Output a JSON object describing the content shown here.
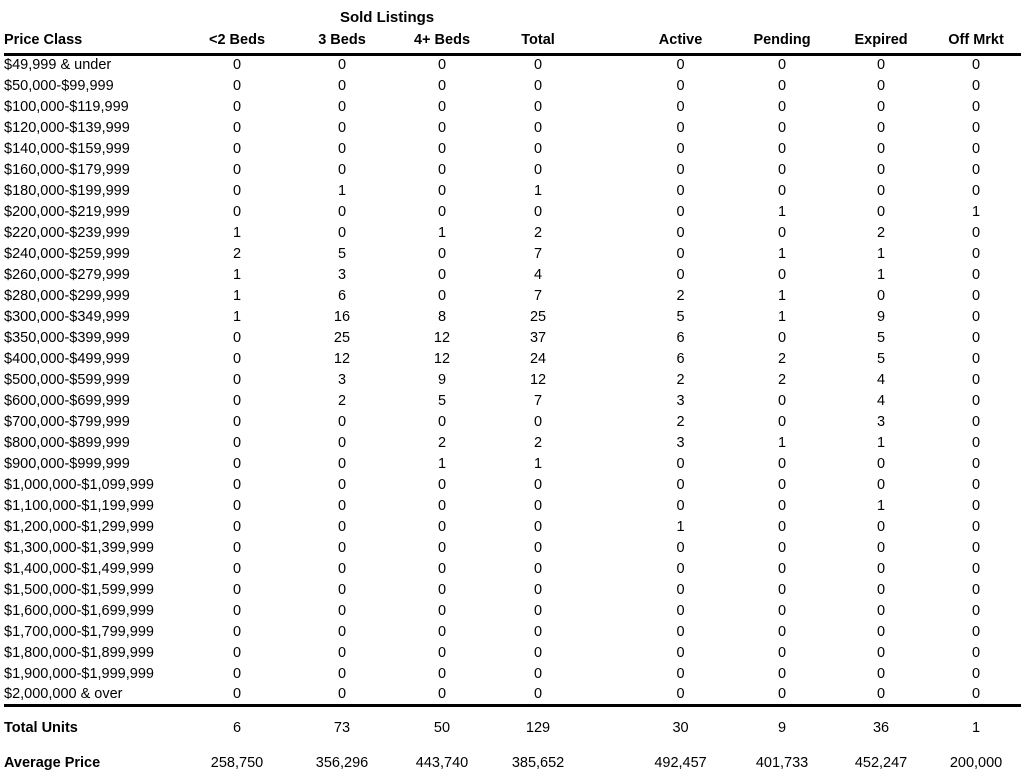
{
  "table": {
    "group_header": "Sold Listings",
    "columns": [
      "Price Class",
      "<2 Beds",
      "3 Beds",
      "4+ Beds",
      "Total",
      "Active",
      "Pending",
      "Expired",
      "Off Mrkt"
    ],
    "rows": [
      {
        "price_class": "$49,999 & under",
        "values": [
          0,
          0,
          0,
          0,
          0,
          0,
          0,
          0
        ]
      },
      {
        "price_class": "$50,000-$99,999",
        "values": [
          0,
          0,
          0,
          0,
          0,
          0,
          0,
          0
        ]
      },
      {
        "price_class": "$100,000-$119,999",
        "values": [
          0,
          0,
          0,
          0,
          0,
          0,
          0,
          0
        ]
      },
      {
        "price_class": "$120,000-$139,999",
        "values": [
          0,
          0,
          0,
          0,
          0,
          0,
          0,
          0
        ]
      },
      {
        "price_class": "$140,000-$159,999",
        "values": [
          0,
          0,
          0,
          0,
          0,
          0,
          0,
          0
        ]
      },
      {
        "price_class": "$160,000-$179,999",
        "values": [
          0,
          0,
          0,
          0,
          0,
          0,
          0,
          0
        ]
      },
      {
        "price_class": "$180,000-$199,999",
        "values": [
          0,
          1,
          0,
          1,
          0,
          0,
          0,
          0
        ]
      },
      {
        "price_class": "$200,000-$219,999",
        "values": [
          0,
          0,
          0,
          0,
          0,
          1,
          0,
          1
        ]
      },
      {
        "price_class": "$220,000-$239,999",
        "values": [
          1,
          0,
          1,
          2,
          0,
          0,
          2,
          0
        ]
      },
      {
        "price_class": "$240,000-$259,999",
        "values": [
          2,
          5,
          0,
          7,
          0,
          1,
          1,
          0
        ]
      },
      {
        "price_class": "$260,000-$279,999",
        "values": [
          1,
          3,
          0,
          4,
          0,
          0,
          1,
          0
        ]
      },
      {
        "price_class": "$280,000-$299,999",
        "values": [
          1,
          6,
          0,
          7,
          2,
          1,
          0,
          0
        ]
      },
      {
        "price_class": "$300,000-$349,999",
        "values": [
          1,
          16,
          8,
          25,
          5,
          1,
          9,
          0
        ]
      },
      {
        "price_class": "$350,000-$399,999",
        "values": [
          0,
          25,
          12,
          37,
          6,
          0,
          5,
          0
        ]
      },
      {
        "price_class": "$400,000-$499,999",
        "values": [
          0,
          12,
          12,
          24,
          6,
          2,
          5,
          0
        ]
      },
      {
        "price_class": "$500,000-$599,999",
        "values": [
          0,
          3,
          9,
          12,
          2,
          2,
          4,
          0
        ]
      },
      {
        "price_class": "$600,000-$699,999",
        "values": [
          0,
          2,
          5,
          7,
          3,
          0,
          4,
          0
        ]
      },
      {
        "price_class": "$700,000-$799,999",
        "values": [
          0,
          0,
          0,
          0,
          2,
          0,
          3,
          0
        ]
      },
      {
        "price_class": "$800,000-$899,999",
        "values": [
          0,
          0,
          2,
          2,
          3,
          1,
          1,
          0
        ]
      },
      {
        "price_class": "$900,000-$999,999",
        "values": [
          0,
          0,
          1,
          1,
          0,
          0,
          0,
          0
        ]
      },
      {
        "price_class": "$1,000,000-$1,099,999",
        "values": [
          0,
          0,
          0,
          0,
          0,
          0,
          0,
          0
        ]
      },
      {
        "price_class": "$1,100,000-$1,199,999",
        "values": [
          0,
          0,
          0,
          0,
          0,
          0,
          1,
          0
        ]
      },
      {
        "price_class": "$1,200,000-$1,299,999",
        "values": [
          0,
          0,
          0,
          0,
          1,
          0,
          0,
          0
        ]
      },
      {
        "price_class": "$1,300,000-$1,399,999",
        "values": [
          0,
          0,
          0,
          0,
          0,
          0,
          0,
          0
        ]
      },
      {
        "price_class": "$1,400,000-$1,499,999",
        "values": [
          0,
          0,
          0,
          0,
          0,
          0,
          0,
          0
        ]
      },
      {
        "price_class": "$1,500,000-$1,599,999",
        "values": [
          0,
          0,
          0,
          0,
          0,
          0,
          0,
          0
        ]
      },
      {
        "price_class": "$1,600,000-$1,699,999",
        "values": [
          0,
          0,
          0,
          0,
          0,
          0,
          0,
          0
        ]
      },
      {
        "price_class": "$1,700,000-$1,799,999",
        "values": [
          0,
          0,
          0,
          0,
          0,
          0,
          0,
          0
        ]
      },
      {
        "price_class": "$1,800,000-$1,899,999",
        "values": [
          0,
          0,
          0,
          0,
          0,
          0,
          0,
          0
        ]
      },
      {
        "price_class": "$1,900,000-$1,999,999",
        "values": [
          0,
          0,
          0,
          0,
          0,
          0,
          0,
          0
        ]
      },
      {
        "price_class": "$2,000,000 & over",
        "values": [
          0,
          0,
          0,
          0,
          0,
          0,
          0,
          0
        ]
      }
    ],
    "total_units": {
      "label": "Total Units",
      "values": [
        "6",
        "73",
        "50",
        "129",
        "30",
        "9",
        "36",
        "1"
      ]
    },
    "average_price": {
      "label": "Average Price",
      "values": [
        "258,750",
        "356,296",
        "443,740",
        "385,652",
        "492,457",
        "401,733",
        "452,247",
        "200,000"
      ]
    },
    "text_color": "#000000",
    "background": "#ffffff"
  }
}
